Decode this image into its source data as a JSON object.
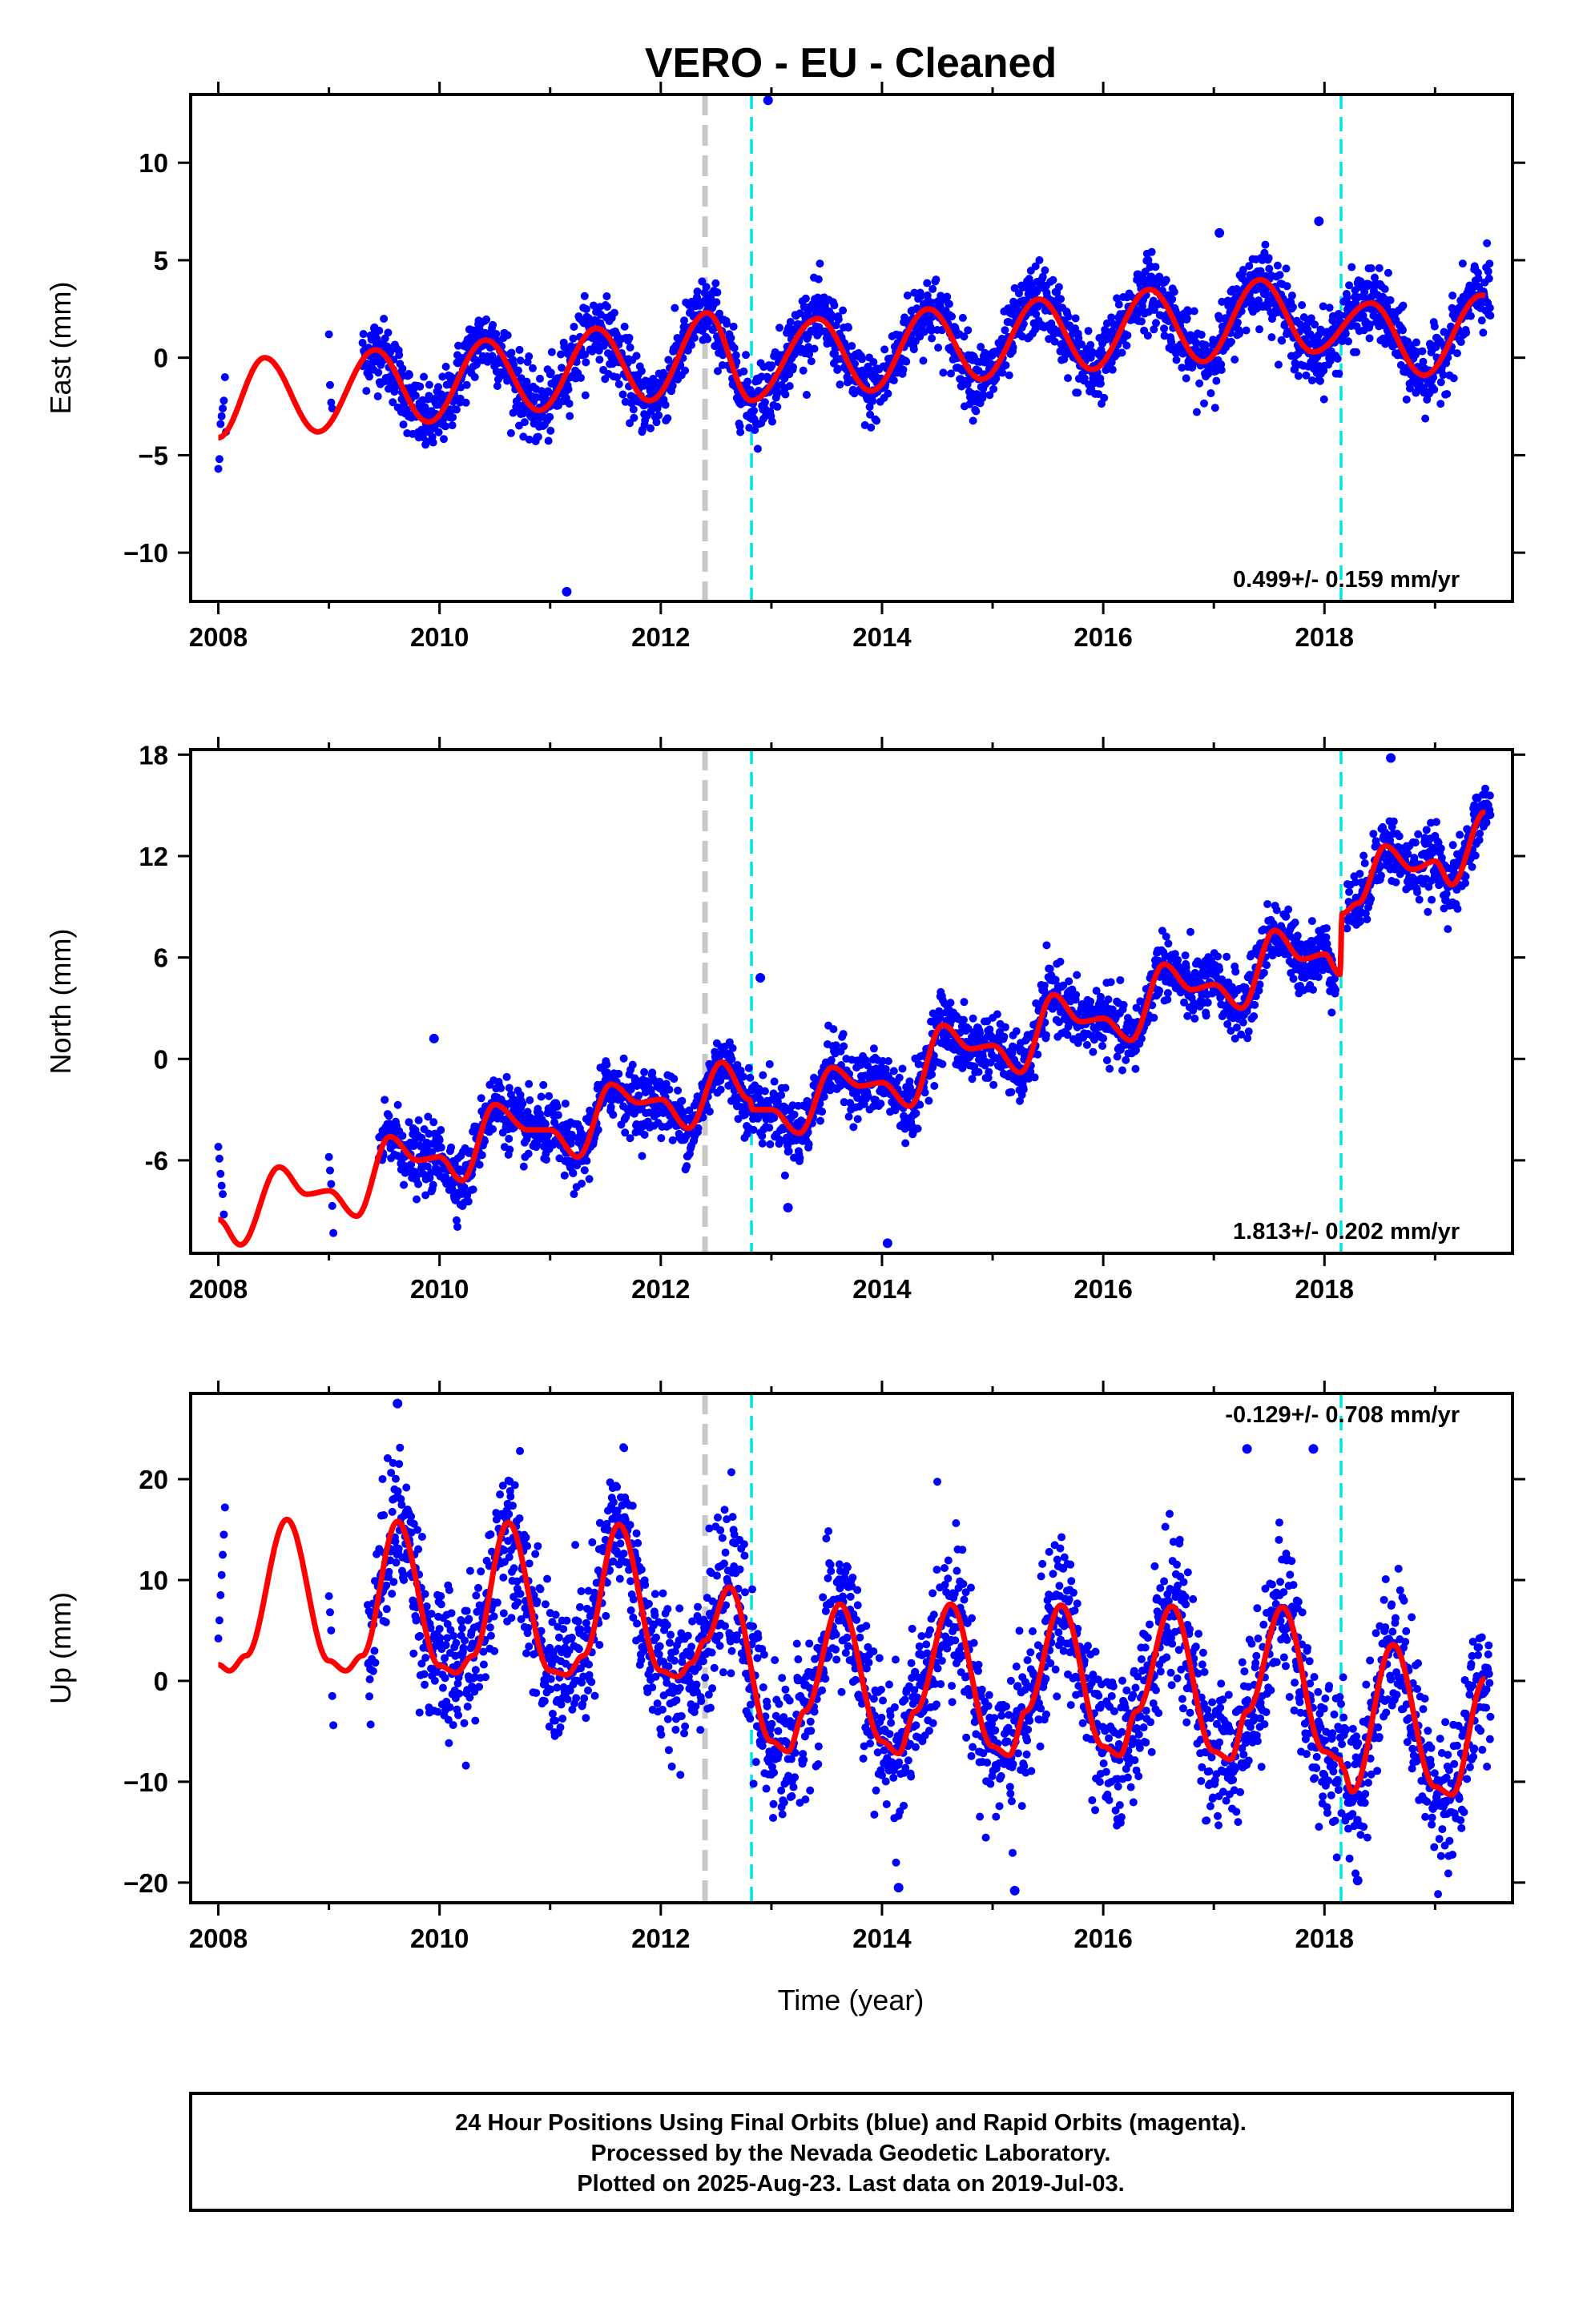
{
  "title": "VERO  - EU - Cleaned",
  "x_axis_label": "Time (year)",
  "footer": {
    "line1": "24 Hour Positions Using Final Orbits (blue) and Rapid Orbits (magenta).",
    "line2": "Processed by the Nevada Geodetic Laboratory.",
    "line3": "Plotted on 2025-Aug-23. Last data on 2019-Jul-03."
  },
  "colors": {
    "data_points": "#0000ff",
    "model_curve": "#ff0000",
    "equipment_change": "#00e5e5",
    "earthquake_marker": "#c8c8c8",
    "frame": "#000000"
  },
  "chart_data": [
    {
      "type": "scatter",
      "name": "east",
      "ylabel": "East (mm)",
      "xlim": [
        2007.75,
        2019.7
      ],
      "ylim": [
        -12.5,
        13.5
      ],
      "xticks": [
        "2008",
        "2010",
        "2012",
        "2014",
        "2016",
        "2018"
      ],
      "yticks": [
        "10",
        "5",
        "0",
        "−5",
        "−10"
      ],
      "ytick_values": [
        10,
        5,
        0,
        -5,
        -10
      ],
      "rate_text": "0.499+/- 0.159 mm/yr",
      "rate_position": "bottom-right",
      "grid": false,
      "vertical_lines": [
        {
          "x": 2012.4,
          "kind": "earthquake",
          "style": "dashed-gray"
        },
        {
          "x": 2012.82,
          "kind": "equipment",
          "style": "dashed-cyan"
        },
        {
          "x": 2018.15,
          "kind": "equipment",
          "style": "dashed-cyan"
        }
      ],
      "model": {
        "rate_mm_per_yr": 0.499,
        "annual_amplitude": 1.9,
        "annual_peak_year_fraction": 0.42,
        "offset_at_2008": -2.0,
        "offsets": [
          {
            "x": 2012.82,
            "value": -2.3
          },
          {
            "x": 2018.15,
            "value": -0.4
          }
        ]
      },
      "key_points": [
        {
          "x": 2008.0,
          "y": -4.1
        },
        {
          "x": 2008.42,
          "y": 0.0
        },
        {
          "x": 2008.9,
          "y": -3.8
        },
        {
          "x": 2009.42,
          "y": 0.4
        },
        {
          "x": 2009.9,
          "y": -3.3
        },
        {
          "x": 2010.42,
          "y": 0.9
        },
        {
          "x": 2010.9,
          "y": -2.7
        },
        {
          "x": 2011.42,
          "y": 1.5
        },
        {
          "x": 2011.9,
          "y": -2.2
        },
        {
          "x": 2012.42,
          "y": 2.3
        },
        {
          "x": 2012.82,
          "y": -2.2
        },
        {
          "x": 2013.42,
          "y": 2.0
        },
        {
          "x": 2013.9,
          "y": -1.7
        },
        {
          "x": 2014.42,
          "y": 2.5
        },
        {
          "x": 2014.9,
          "y": -1.1
        },
        {
          "x": 2015.42,
          "y": 3.0
        },
        {
          "x": 2015.9,
          "y": -0.6
        },
        {
          "x": 2016.42,
          "y": 3.5
        },
        {
          "x": 2016.9,
          "y": -0.2
        },
        {
          "x": 2017.42,
          "y": 4.0
        },
        {
          "x": 2017.9,
          "y": 0.3
        },
        {
          "x": 2018.42,
          "y": 2.8
        },
        {
          "x": 2018.9,
          "y": -0.9
        },
        {
          "x": 2019.42,
          "y": 3.2
        }
      ],
      "data_start": 2009.3,
      "scatter_sigma": 0.9,
      "outliers": [
        {
          "x": 2012.97,
          "y": 13.2
        },
        {
          "x": 2011.15,
          "y": -12.0
        },
        {
          "x": 2017.95,
          "y": 7.0
        },
        {
          "x": 2017.05,
          "y": 6.4
        }
      ],
      "early_points": [
        {
          "x": 2008.0,
          "y": -5.7
        },
        {
          "x": 2008.01,
          "y": -5.2
        },
        {
          "x": 2008.02,
          "y": -3.4
        },
        {
          "x": 2008.03,
          "y": -3.0
        },
        {
          "x": 2008.04,
          "y": -2.6
        },
        {
          "x": 2008.05,
          "y": -2.2
        },
        {
          "x": 2008.06,
          "y": -1.0
        },
        {
          "x": 2008.07,
          "y": -3.8
        },
        {
          "x": 2009.0,
          "y": 1.2
        },
        {
          "x": 2009.01,
          "y": -1.4
        },
        {
          "x": 2009.02,
          "y": -2.3
        },
        {
          "x": 2009.03,
          "y": -2.6
        }
      ]
    },
    {
      "type": "scatter",
      "name": "north",
      "ylabel": "North (mm)",
      "xlim": [
        2007.75,
        2019.7
      ],
      "ylim": [
        -11.5,
        18.3
      ],
      "xticks": [
        "2008",
        "2010",
        "2012",
        "2014",
        "2016",
        "2018"
      ],
      "yticks": [
        "18",
        "12",
        "6",
        "0",
        "-6"
      ],
      "ytick_values": [
        18,
        12,
        6,
        0,
        -6
      ],
      "rate_text": "1.813+/- 0.202 mm/yr",
      "rate_position": "bottom-right",
      "grid": false,
      "vertical_lines": [
        {
          "x": 2012.4,
          "kind": "earthquake",
          "style": "dashed-gray"
        },
        {
          "x": 2012.82,
          "kind": "equipment",
          "style": "dashed-cyan"
        },
        {
          "x": 2018.15,
          "kind": "equipment",
          "style": "dashed-cyan"
        }
      ],
      "key_points": [
        {
          "x": 2008.0,
          "y": -9.5
        },
        {
          "x": 2008.2,
          "y": -11.0
        },
        {
          "x": 2008.55,
          "y": -6.4
        },
        {
          "x": 2008.8,
          "y": -8.0
        },
        {
          "x": 2009.0,
          "y": -7.8
        },
        {
          "x": 2009.25,
          "y": -9.3
        },
        {
          "x": 2009.55,
          "y": -4.6
        },
        {
          "x": 2009.8,
          "y": -6.0
        },
        {
          "x": 2010.0,
          "y": -5.8
        },
        {
          "x": 2010.2,
          "y": -7.2
        },
        {
          "x": 2010.5,
          "y": -2.7
        },
        {
          "x": 2010.8,
          "y": -4.2
        },
        {
          "x": 2011.0,
          "y": -4.2
        },
        {
          "x": 2011.25,
          "y": -5.8
        },
        {
          "x": 2011.55,
          "y": -1.5
        },
        {
          "x": 2011.8,
          "y": -2.6
        },
        {
          "x": 2012.0,
          "y": -2.4
        },
        {
          "x": 2012.25,
          "y": -4.1
        },
        {
          "x": 2012.55,
          "y": -0.2
        },
        {
          "x": 2012.8,
          "y": -2.4
        },
        {
          "x": 2012.83,
          "y": -3.0
        },
        {
          "x": 2013.0,
          "y": -3.0
        },
        {
          "x": 2013.25,
          "y": -4.4
        },
        {
          "x": 2013.55,
          "y": -0.5
        },
        {
          "x": 2013.8,
          "y": -1.6
        },
        {
          "x": 2014.0,
          "y": -1.4
        },
        {
          "x": 2014.25,
          "y": -2.8
        },
        {
          "x": 2014.55,
          "y": 2.0
        },
        {
          "x": 2014.8,
          "y": 0.6
        },
        {
          "x": 2015.0,
          "y": 0.8
        },
        {
          "x": 2015.25,
          "y": -0.8
        },
        {
          "x": 2015.55,
          "y": 3.8
        },
        {
          "x": 2015.8,
          "y": 2.2
        },
        {
          "x": 2016.0,
          "y": 2.4
        },
        {
          "x": 2016.25,
          "y": 1.1
        },
        {
          "x": 2016.55,
          "y": 5.6
        },
        {
          "x": 2016.8,
          "y": 4.1
        },
        {
          "x": 2017.0,
          "y": 4.4
        },
        {
          "x": 2017.25,
          "y": 3.0
        },
        {
          "x": 2017.55,
          "y": 7.6
        },
        {
          "x": 2017.8,
          "y": 5.9
        },
        {
          "x": 2018.0,
          "y": 6.2
        },
        {
          "x": 2018.14,
          "y": 5.0
        },
        {
          "x": 2018.16,
          "y": 8.6
        },
        {
          "x": 2018.3,
          "y": 9.2
        },
        {
          "x": 2018.55,
          "y": 12.6
        },
        {
          "x": 2018.8,
          "y": 11.2
        },
        {
          "x": 2019.0,
          "y": 11.7
        },
        {
          "x": 2019.15,
          "y": 10.3
        },
        {
          "x": 2019.45,
          "y": 14.6
        }
      ],
      "data_start": 2009.45,
      "scatter_sigma": 0.95,
      "outliers": [
        {
          "x": 2014.05,
          "y": -10.9
        },
        {
          "x": 2012.9,
          "y": 4.8
        },
        {
          "x": 2018.6,
          "y": 17.8
        },
        {
          "x": 2009.95,
          "y": 1.2
        },
        {
          "x": 2013.15,
          "y": -8.8
        }
      ],
      "early_points": [
        {
          "x": 2008.0,
          "y": -5.2
        },
        {
          "x": 2008.01,
          "y": -5.9
        },
        {
          "x": 2008.02,
          "y": -6.8
        },
        {
          "x": 2008.03,
          "y": -7.5
        },
        {
          "x": 2008.04,
          "y": -8.0
        },
        {
          "x": 2008.05,
          "y": -9.2
        },
        {
          "x": 2009.0,
          "y": -5.8
        },
        {
          "x": 2009.01,
          "y": -6.6
        },
        {
          "x": 2009.02,
          "y": -7.4
        },
        {
          "x": 2009.03,
          "y": -8.7
        },
        {
          "x": 2009.04,
          "y": -10.3
        }
      ]
    },
    {
      "type": "scatter",
      "name": "up",
      "ylabel": "Up (mm)",
      "xlim": [
        2007.75,
        2019.7
      ],
      "ylim": [
        -22,
        28.5
      ],
      "xticks": [
        "2008",
        "2010",
        "2012",
        "2014",
        "2016",
        "2018"
      ],
      "yticks": [
        "20",
        "10",
        "0",
        "−10",
        "−20"
      ],
      "ytick_values": [
        20,
        10,
        0,
        -10,
        -20
      ],
      "rate_text": "-0.129+/- 0.708 mm/yr",
      "rate_position": "top-right",
      "grid": false,
      "vertical_lines": [
        {
          "x": 2012.4,
          "kind": "earthquake",
          "style": "dashed-gray"
        },
        {
          "x": 2012.82,
          "kind": "equipment",
          "style": "dashed-cyan"
        },
        {
          "x": 2018.15,
          "kind": "equipment",
          "style": "dashed-cyan"
        }
      ],
      "key_points": [
        {
          "x": 2008.0,
          "y": 1.6
        },
        {
          "x": 2008.1,
          "y": 1.0
        },
        {
          "x": 2008.25,
          "y": 2.5
        },
        {
          "x": 2008.62,
          "y": 16.0
        },
        {
          "x": 2009.0,
          "y": 2.0
        },
        {
          "x": 2009.15,
          "y": 1.0
        },
        {
          "x": 2009.3,
          "y": 2.5
        },
        {
          "x": 2009.62,
          "y": 15.8
        },
        {
          "x": 2010.0,
          "y": 1.5
        },
        {
          "x": 2010.15,
          "y": 0.8
        },
        {
          "x": 2010.3,
          "y": 2.5
        },
        {
          "x": 2010.62,
          "y": 15.7
        },
        {
          "x": 2011.0,
          "y": 1.0
        },
        {
          "x": 2011.15,
          "y": 0.6
        },
        {
          "x": 2011.3,
          "y": 2.5
        },
        {
          "x": 2011.62,
          "y": 15.5
        },
        {
          "x": 2012.0,
          "y": 1.0
        },
        {
          "x": 2012.15,
          "y": 0.4
        },
        {
          "x": 2012.28,
          "y": 1.8
        },
        {
          "x": 2012.4,
          "y": 4.0
        },
        {
          "x": 2012.62,
          "y": 9.3
        },
        {
          "x": 2013.0,
          "y": -6.0
        },
        {
          "x": 2013.15,
          "y": -7.0
        },
        {
          "x": 2013.3,
          "y": -3.0
        },
        {
          "x": 2013.62,
          "y": 7.6
        },
        {
          "x": 2014.0,
          "y": -6.0
        },
        {
          "x": 2014.15,
          "y": -7.2
        },
        {
          "x": 2014.3,
          "y": -3.0
        },
        {
          "x": 2014.62,
          "y": 7.6
        },
        {
          "x": 2015.0,
          "y": -6.5
        },
        {
          "x": 2015.15,
          "y": -7.4
        },
        {
          "x": 2015.3,
          "y": -3.0
        },
        {
          "x": 2015.62,
          "y": 7.5
        },
        {
          "x": 2016.0,
          "y": -6.5
        },
        {
          "x": 2016.15,
          "y": -7.4
        },
        {
          "x": 2016.3,
          "y": -3.0
        },
        {
          "x": 2016.62,
          "y": 7.4
        },
        {
          "x": 2017.0,
          "y": -7.0
        },
        {
          "x": 2017.15,
          "y": -7.8
        },
        {
          "x": 2017.3,
          "y": -3.0
        },
        {
          "x": 2017.62,
          "y": 7.3
        },
        {
          "x": 2018.0,
          "y": -7.0
        },
        {
          "x": 2018.14,
          "y": -7.8
        },
        {
          "x": 2018.16,
          "y": -8.5
        },
        {
          "x": 2018.25,
          "y": -11.0
        },
        {
          "x": 2018.62,
          "y": 3.6
        },
        {
          "x": 2019.0,
          "y": -10.5
        },
        {
          "x": 2019.15,
          "y": -11.3
        },
        {
          "x": 2019.45,
          "y": 0.2
        }
      ],
      "data_start": 2009.35,
      "scatter_sigma": 3.6,
      "outliers": [
        {
          "x": 2009.62,
          "y": 27.5
        },
        {
          "x": 2017.3,
          "y": 23.0
        },
        {
          "x": 2017.9,
          "y": 23.0
        },
        {
          "x": 2014.15,
          "y": -20.5
        },
        {
          "x": 2015.2,
          "y": -20.8
        },
        {
          "x": 2018.3,
          "y": -19.8
        }
      ],
      "early_points": [
        {
          "x": 2008.0,
          "y": 4.2
        },
        {
          "x": 2008.01,
          "y": 6.0
        },
        {
          "x": 2008.02,
          "y": 8.5
        },
        {
          "x": 2008.03,
          "y": 10.5
        },
        {
          "x": 2008.04,
          "y": 12.5
        },
        {
          "x": 2008.05,
          "y": 14.5
        },
        {
          "x": 2008.06,
          "y": 17.2
        },
        {
          "x": 2009.0,
          "y": 8.4
        },
        {
          "x": 2009.01,
          "y": 6.8
        },
        {
          "x": 2009.02,
          "y": 5.0
        },
        {
          "x": 2009.03,
          "y": -1.5
        },
        {
          "x": 2009.04,
          "y": -4.4
        }
      ]
    }
  ]
}
